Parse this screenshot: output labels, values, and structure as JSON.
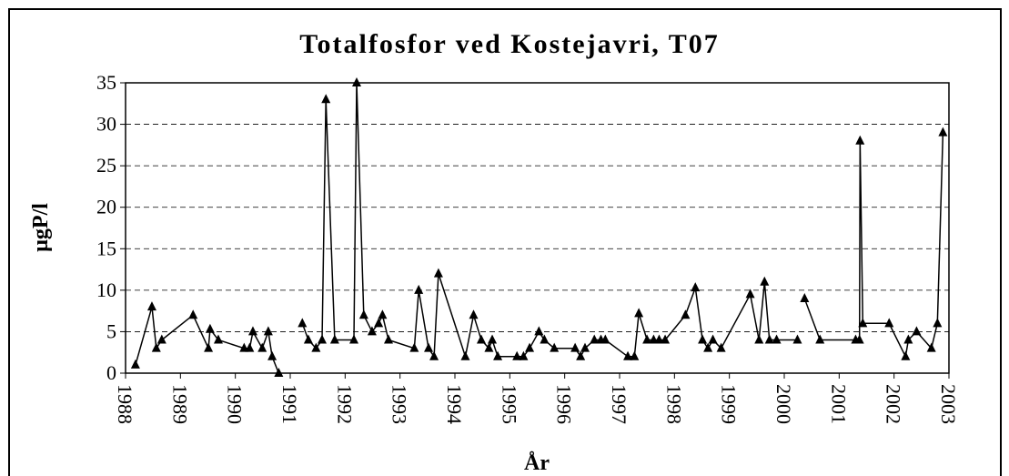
{
  "chart_data": {
    "type": "line",
    "title": "Totalfosfor ved Kostejavri, T07",
    "x_label": "År",
    "y_label": "µgP/l",
    "series": [
      {
        "name": "T07",
        "color": "#000000",
        "x": [
          1988.18,
          1988.48,
          1988.56,
          1988.66,
          1989.23,
          1989.51,
          1989.54,
          1989.69,
          1990.16,
          1990.26,
          1990.32,
          1990.49,
          1990.6,
          1990.67,
          1990.79,
          null,
          1991.22,
          1991.33,
          1991.47,
          1991.58,
          1991.65,
          1991.81,
          1992.16,
          1992.21,
          1992.34,
          1992.49,
          1992.61,
          1992.68,
          1992.79,
          1993.26,
          1993.34,
          1993.52,
          1993.62,
          1993.7,
          1994.19,
          1994.34,
          1994.48,
          1994.62,
          1994.68,
          1994.78,
          1995.13,
          1995.25,
          1995.36,
          1995.53,
          1995.63,
          1995.81,
          1996.19,
          1996.29,
          1996.37,
          1996.54,
          1996.66,
          1996.74,
          1997.15,
          1997.27,
          1997.35,
          1997.5,
          1997.62,
          1997.72,
          1997.83,
          1998.2,
          1998.38,
          1998.51,
          1998.61,
          1998.7,
          1998.85,
          1999.38,
          1999.54,
          1999.64,
          1999.73,
          1999.86,
          2000.24,
          null,
          2000.37,
          2000.65,
          2001.3,
          2001.37,
          2001.38,
          2001.43,
          2001.91,
          2002.21,
          2002.26,
          2002.41,
          2002.68,
          2002.79,
          2002.89
        ],
        "values": [
          1,
          8,
          3,
          4,
          7,
          3,
          5.3,
          4,
          3,
          3,
          5,
          3,
          5,
          2,
          0,
          null,
          6,
          4,
          3,
          4,
          33,
          4,
          4,
          35,
          7,
          5,
          6,
          7,
          4,
          3,
          10,
          3,
          2,
          12,
          2,
          7,
          4,
          3,
          4,
          2,
          2,
          2,
          3,
          5,
          4,
          3,
          3,
          2,
          3,
          4,
          4,
          4,
          2,
          2,
          7.2,
          4,
          4,
          4,
          4,
          7,
          10.3,
          4,
          3,
          4,
          3,
          9.5,
          4,
          11,
          4,
          4,
          4,
          null,
          9,
          4,
          4,
          4,
          28,
          6,
          6,
          2,
          4,
          5,
          3,
          6,
          29
        ]
      }
    ],
    "xlim": [
      1988,
      2003
    ],
    "xticks": [
      1988,
      1989,
      1990,
      1991,
      1992,
      1993,
      1994,
      1995,
      1996,
      1997,
      1998,
      1999,
      2000,
      2001,
      2002,
      2003
    ],
    "ylim": [
      0,
      35
    ],
    "yticks": [
      0,
      5,
      10,
      15,
      20,
      25,
      30,
      35
    ],
    "grid": true
  }
}
